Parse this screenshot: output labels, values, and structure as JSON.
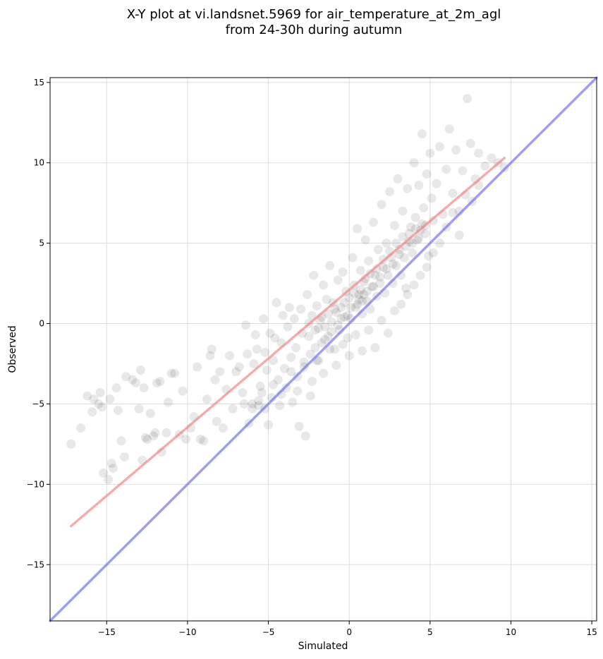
{
  "chart_data": {
    "type": "scatter",
    "title": [
      "X-Y plot at vi.landsnet.5969 for air_temperature_at_2m_agl",
      "from 24-30h during autumn"
    ],
    "xlabel": "Simulated",
    "ylabel": "Observed",
    "xlim": [
      -18.5,
      15.3
    ],
    "ylim": [
      -18.5,
      15.3
    ],
    "xticks": [
      -15,
      -10,
      -5,
      0,
      5,
      10,
      15
    ],
    "yticks": [
      -15,
      -10,
      -5,
      0,
      5,
      10,
      15
    ],
    "xtick_labels": [
      "−15",
      "−10",
      "−5",
      "0",
      "5",
      "10",
      "15"
    ],
    "ytick_labels": [
      "−15",
      "−10",
      "−5",
      "0",
      "5",
      "10",
      "15"
    ],
    "grid": true,
    "colors": {
      "points": "#000000",
      "fit_line": "#f08080",
      "one_to_one": "#6a6af0"
    },
    "series": [
      {
        "kind": "scatter",
        "points": [
          [
            -17.2,
            -7.5
          ],
          [
            -16.6,
            -6.5
          ],
          [
            -16.2,
            -4.5
          ],
          [
            -15.9,
            -5.5
          ],
          [
            -15.8,
            -4.7
          ],
          [
            -15.5,
            -5.0
          ],
          [
            -15.4,
            -4.3
          ],
          [
            -15.3,
            -5.2
          ],
          [
            -15.2,
            -9.3
          ],
          [
            -14.9,
            -9.7
          ],
          [
            -14.8,
            -4.7
          ],
          [
            -14.7,
            -8.7
          ],
          [
            -14.6,
            -9.0
          ],
          [
            -14.4,
            -4.0
          ],
          [
            -14.3,
            -5.4
          ],
          [
            -14.1,
            -7.3
          ],
          [
            -13.9,
            -8.3
          ],
          [
            -13.8,
            -3.3
          ],
          [
            -13.4,
            -3.5
          ],
          [
            -13.2,
            -3.7
          ],
          [
            -13.0,
            -5.3
          ],
          [
            -12.9,
            -2.9
          ],
          [
            -12.8,
            -8.5
          ],
          [
            -12.7,
            -4.0
          ],
          [
            -12.6,
            -7.1
          ],
          [
            -12.5,
            -7.2
          ],
          [
            -12.3,
            -5.6
          ],
          [
            -12.1,
            -7.0
          ],
          [
            -12.0,
            -6.8
          ],
          [
            -11.9,
            -3.7
          ],
          [
            -11.7,
            -3.6
          ],
          [
            -11.6,
            -8.0
          ],
          [
            -11.3,
            -6.8
          ],
          [
            -11.2,
            -4.9
          ],
          [
            -11.0,
            -3.1
          ],
          [
            -10.8,
            -3.1
          ],
          [
            -10.5,
            -6.9
          ],
          [
            -10.3,
            -4.2
          ],
          [
            -10.1,
            -7.2
          ],
          [
            -9.8,
            -6.5
          ],
          [
            -9.6,
            -5.8
          ],
          [
            -9.4,
            -2.7
          ],
          [
            -9.2,
            -7.2
          ],
          [
            -9.0,
            -7.3
          ],
          [
            -8.8,
            -4.7
          ],
          [
            -8.6,
            -2.0
          ],
          [
            -8.5,
            -1.6
          ],
          [
            -8.3,
            -3.5
          ],
          [
            -8.2,
            -6.1
          ],
          [
            -8.0,
            -3.0
          ],
          [
            -7.8,
            -6.5
          ],
          [
            -7.6,
            -4.1
          ],
          [
            -7.4,
            -2.0
          ],
          [
            -7.2,
            -5.3
          ],
          [
            -7.0,
            -3.0
          ],
          [
            -6.8,
            -2.7
          ],
          [
            -6.6,
            -4.3
          ],
          [
            -6.4,
            -0.1
          ],
          [
            -6.3,
            -1.9
          ],
          [
            -6.2,
            -6.2
          ],
          [
            -6.0,
            -5.0
          ],
          [
            -5.9,
            -2.5
          ],
          [
            -5.8,
            -0.7
          ],
          [
            -5.7,
            -1.6
          ],
          [
            -5.6,
            -5.1
          ],
          [
            -5.5,
            -3.9
          ],
          [
            -5.4,
            -4.3
          ],
          [
            -5.3,
            0.3
          ],
          [
            -5.2,
            -1.8
          ],
          [
            -5.1,
            -2.9
          ],
          [
            -5.0,
            -6.3
          ],
          [
            -4.9,
            -0.6
          ],
          [
            -4.8,
            -4.6
          ],
          [
            -4.7,
            -2.3
          ],
          [
            -4.6,
            -0.9
          ],
          [
            -4.5,
            1.3
          ],
          [
            -4.4,
            -3.5
          ],
          [
            -4.3,
            -5.1
          ],
          [
            -4.2,
            -1.2
          ],
          [
            -4.1,
            0.5
          ],
          [
            -4.0,
            -2.8
          ],
          [
            -3.9,
            -4.0
          ],
          [
            -3.8,
            -0.2
          ],
          [
            -3.7,
            1.0
          ],
          [
            -3.6,
            -2.1
          ],
          [
            -3.5,
            -4.9
          ],
          [
            -3.4,
            0.3
          ],
          [
            -3.3,
            -1.5
          ],
          [
            -3.2,
            -3.3
          ],
          [
            -3.1,
            -6.4
          ],
          [
            -3.0,
            0.9
          ],
          [
            -2.9,
            -0.6
          ],
          [
            -2.8,
            -2.4
          ],
          [
            -2.7,
            -7.0
          ],
          [
            -2.6,
            1.8
          ],
          [
            -2.5,
            0.0
          ],
          [
            -2.4,
            -1.9
          ],
          [
            -2.3,
            -3.6
          ],
          [
            -2.2,
            3.0
          ],
          [
            -2.1,
            -0.4
          ],
          [
            -2.0,
            1.1
          ],
          [
            -1.9,
            -2.3
          ],
          [
            -1.8,
            0.2
          ],
          [
            -1.7,
            -1.2
          ],
          [
            -1.6,
            2.4
          ],
          [
            -1.5,
            -0.2
          ],
          [
            -1.4,
            1.5
          ],
          [
            -1.3,
            -0.8
          ],
          [
            -1.2,
            3.6
          ],
          [
            -1.1,
            0.1
          ],
          [
            -1.0,
            1.3
          ],
          [
            -0.9,
            -1.6
          ],
          [
            -0.8,
            0.7
          ],
          [
            -0.7,
            2.7
          ],
          [
            -0.6,
            -0.4
          ],
          [
            -0.5,
            1.0
          ],
          [
            -0.4,
            3.2
          ],
          [
            -0.3,
            0.4
          ],
          [
            -0.2,
            2.0
          ],
          [
            -0.1,
            -0.9
          ],
          [
            0.0,
            1.6
          ],
          [
            0.1,
            0.3
          ],
          [
            0.2,
            4.1
          ],
          [
            0.3,
            2.4
          ],
          [
            0.4,
            1.0
          ],
          [
            0.5,
            5.9
          ],
          [
            0.6,
            1.8
          ],
          [
            0.7,
            3.3
          ],
          [
            0.8,
            0.6
          ],
          [
            0.9,
            2.6
          ],
          [
            1.0,
            5.2
          ],
          [
            1.1,
            1.4
          ],
          [
            1.2,
            3.9
          ],
          [
            1.3,
            0.9
          ],
          [
            1.4,
            2.3
          ],
          [
            1.5,
            6.3
          ],
          [
            1.6,
            3.0
          ],
          [
            1.7,
            1.7
          ],
          [
            1.8,
            4.6
          ],
          [
            1.9,
            2.5
          ],
          [
            2.0,
            7.4
          ],
          [
            2.1,
            3.5
          ],
          [
            2.2,
            1.9
          ],
          [
            2.3,
            5.0
          ],
          [
            2.4,
            3.0
          ],
          [
            2.5,
            8.2
          ],
          [
            2.6,
            4.1
          ],
          [
            2.7,
            2.5
          ],
          [
            2.8,
            6.1
          ],
          [
            2.9,
            3.6
          ],
          [
            3.0,
            9.0
          ],
          [
            3.1,
            4.6
          ],
          [
            3.2,
            3.0
          ],
          [
            3.3,
            7.0
          ],
          [
            3.4,
            4.1
          ],
          [
            3.5,
            2.2
          ],
          [
            3.6,
            8.4
          ],
          [
            3.7,
            5.1
          ],
          [
            3.8,
            6.0
          ],
          [
            3.9,
            4.4
          ],
          [
            4.0,
            10.0
          ],
          [
            4.1,
            6.6
          ],
          [
            4.2,
            5.2
          ],
          [
            4.3,
            8.6
          ],
          [
            4.4,
            5.8
          ],
          [
            4.5,
            11.8
          ],
          [
            4.6,
            7.2
          ],
          [
            4.7,
            6.1
          ],
          [
            4.8,
            9.3
          ],
          [
            4.9,
            4.2
          ],
          [
            5.0,
            10.6
          ],
          [
            5.1,
            7.8
          ],
          [
            5.2,
            6.4
          ],
          [
            5.4,
            8.7
          ],
          [
            5.6,
            11.0
          ],
          [
            5.8,
            6.8
          ],
          [
            6.0,
            9.6
          ],
          [
            6.2,
            12.1
          ],
          [
            6.4,
            8.1
          ],
          [
            6.6,
            10.8
          ],
          [
            6.8,
            7.0
          ],
          [
            7.0,
            9.5
          ],
          [
            7.3,
            14.0
          ],
          [
            7.5,
            11.2
          ],
          [
            7.8,
            9.0
          ],
          [
            8.0,
            10.6
          ],
          [
            8.4,
            9.8
          ],
          [
            8.8,
            10.3
          ],
          [
            9.2,
            10.0
          ],
          [
            9.6,
            9.7
          ],
          [
            -2.5,
            -0.8
          ],
          [
            -2.3,
            0.5
          ],
          [
            -2.1,
            -1.5
          ],
          [
            -1.9,
            -0.3
          ],
          [
            -1.7,
            0.4
          ],
          [
            -1.5,
            -1.0
          ],
          [
            -1.3,
            0.6
          ],
          [
            -1.1,
            -0.5
          ],
          [
            -0.9,
            0.9
          ],
          [
            -0.7,
            -0.1
          ],
          [
            -0.5,
            0.3
          ],
          [
            -0.3,
            1.3
          ],
          [
            -0.1,
            0.5
          ],
          [
            0.1,
            1.0
          ],
          [
            0.3,
            1.9
          ],
          [
            0.5,
            1.2
          ],
          [
            0.6,
            1.5
          ],
          [
            0.7,
            2.1
          ],
          [
            0.8,
            1.4
          ],
          [
            0.9,
            1.8
          ],
          [
            1.0,
            2.8
          ],
          [
            1.1,
            2.0
          ],
          [
            1.3,
            3.1
          ],
          [
            1.5,
            2.3
          ],
          [
            1.7,
            3.4
          ],
          [
            1.9,
            2.9
          ],
          [
            2.1,
            4.0
          ],
          [
            2.3,
            3.4
          ],
          [
            2.5,
            4.5
          ],
          [
            2.7,
            3.7
          ],
          [
            2.9,
            5.0
          ],
          [
            3.1,
            4.3
          ],
          [
            3.3,
            5.4
          ],
          [
            3.5,
            4.8
          ],
          [
            3.7,
            5.6
          ],
          [
            3.9,
            5.0
          ],
          [
            4.1,
            5.9
          ],
          [
            4.3,
            5.3
          ],
          [
            4.5,
            6.2
          ],
          [
            4.7,
            5.6
          ],
          [
            -6.5,
            -5.0
          ],
          [
            -6.0,
            -5.3
          ],
          [
            -5.6,
            -4.8
          ],
          [
            -5.2,
            -5.3
          ],
          [
            -4.7,
            -3.8
          ],
          [
            -4.2,
            -4.4
          ],
          [
            -3.6,
            -3.0
          ],
          [
            -3.2,
            -4.2
          ],
          [
            -2.8,
            -2.7
          ],
          [
            -2.4,
            -4.5
          ],
          [
            -2.0,
            -2.3
          ],
          [
            -1.6,
            -3.1
          ],
          [
            -1.2,
            -1.6
          ],
          [
            -0.8,
            -2.6
          ],
          [
            -0.4,
            -1.3
          ],
          [
            0.0,
            -2.0
          ],
          [
            0.4,
            -0.7
          ],
          [
            0.8,
            -1.7
          ],
          [
            1.2,
            -0.4
          ],
          [
            1.6,
            -1.5
          ],
          [
            2.0,
            0.2
          ],
          [
            2.4,
            -0.6
          ],
          [
            2.8,
            0.8
          ],
          [
            3.2,
            1.2
          ],
          [
            3.6,
            1.8
          ],
          [
            4.0,
            2.4
          ],
          [
            4.4,
            3.0
          ],
          [
            4.8,
            3.5
          ],
          [
            5.2,
            4.4
          ],
          [
            5.6,
            5.0
          ],
          [
            6.0,
            6.0
          ],
          [
            6.4,
            6.9
          ],
          [
            6.8,
            5.5
          ],
          [
            7.2,
            8.0
          ],
          [
            7.6,
            7.6
          ],
          [
            8.0,
            8.6
          ]
        ]
      },
      {
        "kind": "line",
        "name": "fit",
        "x": [
          -17.2,
          9.6
        ],
        "y": [
          -12.6,
          10.3
        ]
      },
      {
        "kind": "line",
        "name": "one-to-one",
        "x": [
          -18.5,
          15.3
        ],
        "y": [
          -18.5,
          15.3
        ]
      }
    ]
  }
}
